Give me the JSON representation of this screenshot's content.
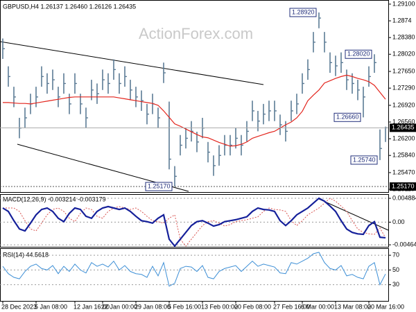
{
  "chart_data": [
    {
      "type": "ohlc",
      "title": "GBPUSD,H4  1.26137 1.26460 1.26126 1.26435",
      "watermark": "ActionForex.com",
      "color": "#5b7b95",
      "ma_color": "#e3241c",
      "categories": [
        "28 Dec 2023",
        null,
        null,
        null,
        null,
        null,
        "5 Jan 08:00",
        null,
        null,
        null,
        null,
        null,
        null,
        "12 Jan 16:00",
        null,
        null,
        null,
        null,
        "22 Jan 00:00",
        null,
        null,
        null,
        null,
        null,
        "29 Jan 08:00",
        null,
        null,
        null,
        null,
        null,
        "5 Feb 16:00",
        null,
        null,
        null,
        null,
        null,
        "13 Feb 00:00",
        null,
        null,
        null,
        null,
        null,
        "20 Feb 08:00",
        null,
        null,
        null,
        null,
        null,
        null,
        "27 Feb 16:00",
        null,
        null,
        null,
        null,
        "6 Mar 00:00",
        null,
        null,
        null,
        null,
        null,
        "13 Mar 08:00",
        null,
        null,
        null,
        null,
        null,
        "20 Mar 16:00",
        null,
        null,
        null
      ],
      "high": [
        1.2836,
        1.2776,
        1.2732,
        1.2665,
        1.2687,
        1.2717,
        1.2732,
        1.2776,
        1.2761,
        1.2769,
        1.2732,
        1.2761,
        1.2717,
        1.2761,
        1.2717,
        1.2687,
        1.2747,
        1.2739,
        1.2769,
        1.2761,
        1.2791,
        1.2761,
        1.2776,
        1.2747,
        1.2732,
        1.2724,
        1.2695,
        1.2717,
        1.2687,
        1.2784,
        1.27,
        1.2561,
        1.2628,
        1.2643,
        1.2658,
        1.2635,
        1.2665,
        1.2613,
        1.2584,
        1.2606,
        1.2628,
        1.2628,
        1.2643,
        1.2628,
        1.2658,
        1.2702,
        1.268,
        1.2695,
        1.2702,
        1.2702,
        1.2672,
        1.2658,
        1.2702,
        1.2717,
        1.2761,
        1.2791,
        1.285,
        1.2892,
        1.285,
        1.2806,
        1.2799,
        1.2806,
        1.2769,
        1.2761,
        1.2747,
        1.2732,
        1.2776,
        1.2802,
        1.264,
        1.2646
      ],
      "low": [
        1.2792,
        1.2732,
        1.2688,
        1.2621,
        1.2643,
        1.2673,
        1.2688,
        1.2732,
        1.2717,
        1.2725,
        1.2688,
        1.2717,
        1.2673,
        1.2717,
        1.2673,
        1.2643,
        1.2703,
        1.2695,
        1.2725,
        1.2717,
        1.2747,
        1.2717,
        1.2732,
        1.2703,
        1.2688,
        1.268,
        1.2651,
        1.2673,
        1.2643,
        1.274,
        1.2554,
        1.2517,
        1.2584,
        1.2599,
        1.2614,
        1.2591,
        1.2621,
        1.2569,
        1.254,
        1.2562,
        1.2584,
        1.2584,
        1.2599,
        1.2584,
        1.2614,
        1.2658,
        1.2636,
        1.2651,
        1.2658,
        1.2658,
        1.2628,
        1.2614,
        1.2658,
        1.2673,
        1.2717,
        1.2747,
        1.2806,
        1.2858,
        1.2806,
        1.2762,
        1.2755,
        1.2762,
        1.2725,
        1.2717,
        1.2703,
        1.2666,
        1.2732,
        1.2762,
        1.2574,
        1.2613
      ],
      "close": [
        1.2814,
        1.2754,
        1.271,
        1.2643,
        1.2665,
        1.2695,
        1.271,
        1.2754,
        1.2739,
        1.2747,
        1.271,
        1.2739,
        1.2695,
        1.2739,
        1.2695,
        1.2665,
        1.2725,
        1.2717,
        1.2747,
        1.2739,
        1.2769,
        1.2739,
        1.2754,
        1.2725,
        1.271,
        1.2702,
        1.2673,
        1.2695,
        1.2665,
        1.2762,
        1.2576,
        1.2539,
        1.2606,
        1.2621,
        1.2636,
        1.2613,
        1.2643,
        1.2591,
        1.2562,
        1.2584,
        1.2606,
        1.2606,
        1.2621,
        1.2606,
        1.2636,
        1.268,
        1.2658,
        1.2673,
        1.268,
        1.268,
        1.265,
        1.2636,
        1.268,
        1.2695,
        1.2739,
        1.2769,
        1.2828,
        1.288,
        1.2828,
        1.2784,
        1.2777,
        1.2784,
        1.2747,
        1.2739,
        1.2725,
        1.271,
        1.2754,
        1.2784,
        1.2599,
        1.26435
      ],
      "ma": [
        1.2698,
        1.2698,
        1.2697,
        1.2696,
        1.2696,
        1.2695,
        1.2697,
        1.2699,
        1.2701,
        1.2703,
        1.2705,
        1.2707,
        1.2709,
        1.271,
        1.271,
        1.271,
        1.271,
        1.271,
        1.271,
        1.271,
        1.271,
        1.2708,
        1.2706,
        1.2704,
        1.2702,
        1.27,
        1.2698,
        1.2696,
        1.2692,
        1.268,
        1.2666,
        1.2652,
        1.2647,
        1.2641,
        1.2635,
        1.2629,
        1.2624,
        1.2622,
        1.2617,
        1.2612,
        1.2608,
        1.2604,
        1.2605,
        1.2608,
        1.2613,
        1.2621,
        1.2625,
        1.2629,
        1.2633,
        1.2636,
        1.2643,
        1.265,
        1.2656,
        1.2665,
        1.2679,
        1.2702,
        1.2714,
        1.2725,
        1.274,
        1.2745,
        1.275,
        1.2754,
        1.2757,
        1.2754,
        1.275,
        1.2747,
        1.2743,
        1.2735,
        1.272,
        1.2705
      ],
      "ylim": [
        1.25051,
        1.29174
      ],
      "yticks": [
        {
          "value": 1.291,
          "label": "1.29100"
        },
        1.2874,
        {
          "value": 1.2838,
          "label": "1.28380"
        },
        {
          "value": 1.2802,
          "label": "1.28020"
        },
        {
          "value": 1.2765,
          "label": "1.27650"
        },
        {
          "value": 1.2729,
          "label": "1.27290"
        },
        {
          "value": 1.2692,
          "label": "1.26920"
        },
        {
          "value": 1.2656,
          "label": "1.26560"
        },
        {
          "value": 1.262,
          "label": "1.26200"
        },
        {
          "value": 1.2584,
          "label": "1.25840"
        },
        {
          "value": 1.2547,
          "label": "1.25470"
        },
        {
          "value": 1.2511,
          "label": "1.25110"
        }
      ],
      "last_price": 1.26435,
      "level": {
        "value": 1.2517,
        "label": "1.25170"
      },
      "annotations": [
        {
          "value": 1.2892,
          "label": "1.28920"
        },
        {
          "value": 1.2802,
          "label": "1.28020"
        },
        {
          "value": 1.2666,
          "label": "1.26660"
        },
        {
          "value": 1.2574,
          "label": "1.25740"
        },
        {
          "value": 1.2517,
          "label": "1.25170"
        }
      ]
    },
    {
      "type": "macd",
      "title": "MACD(12,26,9) -0.003214 -0.003179",
      "color": "#15209a",
      "signal_color": "#d9534f",
      "macd": [
        0.0029,
        0.0022,
        0.0003,
        -0.0014,
        -0.0018,
        -0.0002,
        0.0015,
        0.0026,
        0.0029,
        0.0022,
        0.0008,
        0.0001,
        0.0018,
        0.0029,
        0.0026,
        0.0012,
        0.0008,
        0.0022,
        0.0029,
        0.0032,
        0.0029,
        0.0026,
        0.0029,
        0.0022,
        0.0012,
        0.0003,
        0.0001,
        -0.0002,
        0.0008,
        0.0015,
        -0.0035,
        -0.0049,
        -0.0035,
        -0.0021,
        -0.0007,
        0.0001,
        0.0003,
        -0.0002,
        -0.0008,
        -0.0005,
        0.0001,
        0.0003,
        0.0005,
        0.0008,
        0.0011,
        0.0022,
        0.0029,
        0.0026,
        0.0025,
        0.0022,
        0.0003,
        -0.0007,
        0.0003,
        0.0015,
        0.0022,
        0.0029,
        0.0039,
        0.0049,
        0.0043,
        0.0033,
        0.0022,
        0.0003,
        -0.0014,
        -0.0021,
        -0.0024,
        -0.0025,
        -0.0007,
        0.0001,
        -0.0031,
        -0.0032
      ],
      "signal": [
        0.0029,
        0.0029,
        0.0029,
        0.0022,
        0.0003,
        -0.0014,
        -0.0018,
        -0.0002,
        0.0015,
        0.0026,
        0.0029,
        0.0022,
        0.0008,
        0.0001,
        0.0018,
        0.0029,
        0.0026,
        0.0012,
        0.0008,
        0.0022,
        0.0029,
        0.0032,
        0.0029,
        0.0026,
        0.0029,
        0.0022,
        0.0012,
        0.0003,
        0.0001,
        -0.0002,
        0.0008,
        0.0015,
        -0.0035,
        -0.0049,
        -0.0035,
        -0.0021,
        -0.0007,
        0.0001,
        0.0003,
        -0.0002,
        -0.0008,
        -0.0005,
        0.0001,
        0.0003,
        0.0005,
        0.0008,
        0.0011,
        0.0022,
        0.0029,
        0.0026,
        0.0025,
        0.0022,
        0.0003,
        -0.0007,
        0.0003,
        0.0015,
        0.0022,
        0.0029,
        0.0039,
        0.0049,
        0.0043,
        0.0033,
        0.0022,
        0.0003,
        -0.0014,
        -0.0021,
        -0.0024,
        -0.0025,
        -0.0012,
        -0.0032
      ],
      "ylim": [
        -0.0052,
        0.0056
      ],
      "yticks": [
        0.004884,
        {
          "value": 0,
          "label": "0.00"
        },
        -0.004645
      ],
      "grid": true
    },
    {
      "type": "rsi",
      "title": "RSI(14) 44.5618",
      "color": "#3d8fd6",
      "values": [
        55,
        45,
        40,
        38,
        48,
        55,
        58,
        52,
        50,
        56,
        45,
        55,
        48,
        58,
        50,
        46,
        60,
        55,
        58,
        54,
        62,
        50,
        56,
        48,
        45,
        44,
        40,
        55,
        42,
        60,
        28,
        32,
        52,
        55,
        54,
        48,
        56,
        40,
        38,
        48,
        52,
        54,
        56,
        48,
        55,
        62,
        55,
        58,
        56,
        54,
        46,
        45,
        60,
        58,
        62,
        66,
        72,
        74,
        60,
        52,
        50,
        56,
        42,
        44,
        40,
        38,
        55,
        60,
        30,
        44.56
      ],
      "ylim": [
        7.1,
        78.6
      ],
      "yticks": [
        70,
        50,
        30
      ],
      "grid": true
    }
  ]
}
